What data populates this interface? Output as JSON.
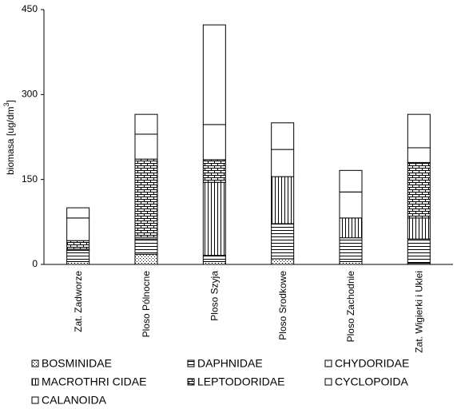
{
  "chart_data": {
    "type": "bar",
    "stacked": true,
    "ylabel": "biomasa [ug/dm",
    "ylabel_sup": "3",
    "ylabel_end": "]",
    "categories": [
      "Zat. Zadworze",
      "Ploso Pólnocne",
      "Ploso Szyja",
      "Ploso Srodkowe",
      "Ploso Zachodnie",
      "Zat. Wigierki i Uklei"
    ],
    "ylim": [
      0,
      450
    ],
    "yticks": [
      0,
      150,
      300,
      450
    ],
    "series": [
      {
        "name": "BOSMINIDAE",
        "color": "#ffffff",
        "pattern": "dots",
        "values": [
          5,
          18,
          5,
          10,
          5,
          2
        ]
      },
      {
        "name": "DAPHNIDAE",
        "color": "#ffffff",
        "pattern": "hlines",
        "values": [
          20,
          27,
          10,
          62,
          42,
          43
        ]
      },
      {
        "name": "CHYDORIDAE",
        "color": "#ffffff",
        "pattern": "finedots",
        "values": [
          2,
          3,
          1,
          0,
          0,
          0
        ]
      },
      {
        "name": "MACROTHRI CIDAE",
        "color": "#ffffff",
        "pattern": "vlines",
        "values": [
          0,
          0,
          129,
          83,
          35,
          37
        ]
      },
      {
        "name": "LEPTODORIDAE",
        "color": "#ffffff",
        "pattern": "brick",
        "values": [
          15,
          138,
          40,
          0,
          0,
          98
        ]
      },
      {
        "name": "CYCLOPOIDA",
        "color": "#ffffff",
        "pattern": "none",
        "values": [
          40,
          44,
          62,
          48,
          46,
          26
        ]
      },
      {
        "name": "CALANOIDA",
        "color": "#ffffff",
        "pattern": "none",
        "values": [
          18,
          35,
          176,
          47,
          38,
          59
        ]
      }
    ]
  }
}
